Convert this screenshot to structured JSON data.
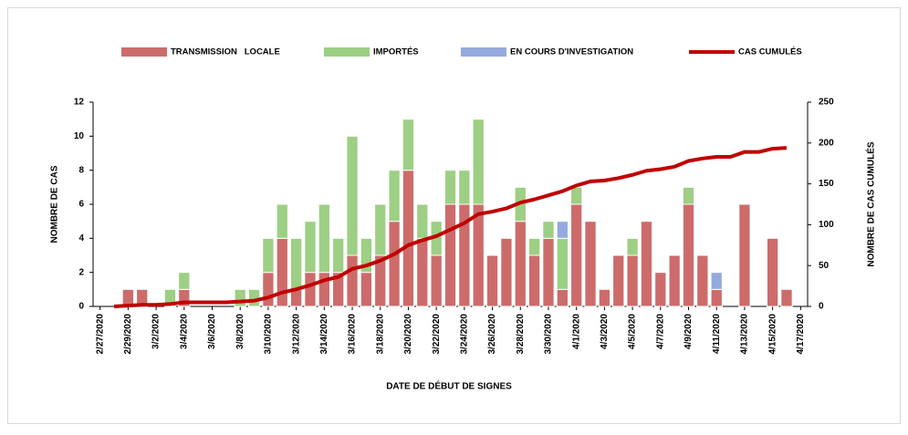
{
  "chart_data": {
    "type": "bar",
    "stacked": true,
    "categories": [
      "2/27/2020",
      null,
      "2/29/2020",
      null,
      "3/2/2020",
      null,
      "3/4/2020",
      null,
      "3/6/2020",
      null,
      "3/8/2020",
      null,
      "3/10/2020",
      null,
      "3/12/2020",
      null,
      "3/14/2020",
      null,
      "3/16/2020",
      null,
      "3/18/2020",
      null,
      "3/20/2020",
      null,
      "3/22/2020",
      null,
      "3/24/2020",
      null,
      "3/26/2020",
      null,
      "3/28/2020",
      null,
      "3/30/2020",
      null,
      "4/1/2020",
      null,
      "4/3/2020",
      null,
      "4/5/2020",
      null,
      "4/7/2020",
      null,
      "4/9/2020",
      null,
      "4/11/2020",
      null,
      "4/13/2020",
      null,
      "4/15/2020",
      null,
      "4/17/2020"
    ],
    "series": [
      {
        "name": "TRANSMISSION   LOCALE",
        "color": "#cd6b6b",
        "values": [
          0,
          0,
          1,
          1,
          0,
          0,
          1,
          0,
          0,
          0,
          0,
          0,
          2,
          4,
          1,
          2,
          2,
          2,
          3,
          2,
          3,
          5,
          8,
          4,
          3,
          6,
          6,
          6,
          3,
          4,
          5,
          3,
          4,
          1,
          6,
          5,
          1,
          3,
          3,
          5,
          2,
          3,
          6,
          3,
          1,
          0,
          6,
          0,
          4,
          1,
          0
        ]
      },
      {
        "name": "IMPORTÉS",
        "color": "#9dcf84",
        "values": [
          0,
          0,
          0,
          0,
          0,
          1,
          1,
          0,
          0,
          0,
          1,
          1,
          2,
          2,
          3,
          3,
          4,
          2,
          7,
          2,
          3,
          3,
          3,
          2,
          2,
          2,
          2,
          5,
          0,
          0,
          2,
          1,
          1,
          3,
          1,
          0,
          0,
          0,
          1,
          0,
          0,
          0,
          1,
          0,
          0,
          0,
          0,
          0,
          0,
          0,
          0
        ]
      },
      {
        "name": "EN COURS D'INVESTIGATION",
        "color": "#94aade",
        "values": [
          0,
          0,
          0,
          0,
          0,
          0,
          0,
          0,
          0,
          0,
          0,
          0,
          0,
          0,
          0,
          0,
          0,
          0,
          0,
          0,
          0,
          0,
          0,
          0,
          0,
          0,
          0,
          0,
          0,
          0,
          0,
          0,
          0,
          1,
          0,
          0,
          0,
          0,
          0,
          0,
          0,
          0,
          0,
          0,
          1,
          0,
          0,
          0,
          0,
          0,
          0
        ]
      },
      {
        "name": "CAS CUMULÉS",
        "color": "#c00000",
        "type": "line",
        "axis": "y2",
        "values": [
          null,
          0,
          1,
          2,
          2,
          3,
          5,
          5,
          5,
          5,
          6,
          7,
          11,
          17,
          21,
          26,
          32,
          36,
          46,
          50,
          56,
          64,
          75,
          81,
          86,
          94,
          102,
          113,
          116,
          120,
          127,
          131,
          136,
          141,
          148,
          153,
          154,
          157,
          161,
          166,
          168,
          171,
          178,
          181,
          183,
          183,
          189,
          189,
          193,
          194,
          null
        ]
      }
    ],
    "xlabel": "DATE DE DÉBUT DE SIGNES",
    "ylabel": "NOMBRE DE CAS",
    "y2label": "NOMBRE DE CAS CUMULÉS",
    "ylim": [
      0,
      12
    ],
    "yticks": [
      0,
      2,
      4,
      6,
      8,
      10,
      12
    ],
    "y2lim": [
      0,
      250
    ],
    "y2ticks": [
      0,
      50,
      100,
      150,
      200,
      250
    ],
    "legend": "top"
  }
}
